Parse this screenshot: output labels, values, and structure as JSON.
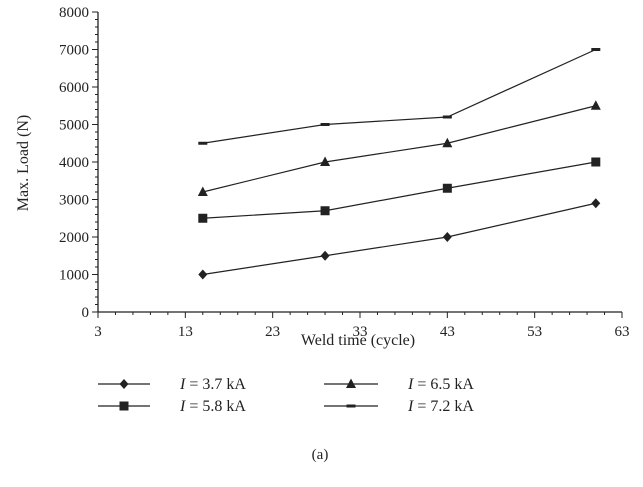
{
  "chart_data": {
    "type": "line",
    "xlabel": "Weld time (cycle)",
    "ylabel": "Max. Load (N)",
    "xlim": [
      3,
      63
    ],
    "ylim": [
      0,
      8000
    ],
    "xticks": [
      3,
      13,
      23,
      33,
      43,
      53,
      63
    ],
    "yticks": [
      0,
      1000,
      2000,
      3000,
      4000,
      5000,
      6000,
      7000,
      8000
    ],
    "series": [
      {
        "name_italic": "I",
        "name_rest": " = 3.7 kA",
        "marker": "diamond",
        "x": [
          15,
          29,
          43,
          60
        ],
        "y": [
          1000,
          1500,
          2000,
          2900
        ]
      },
      {
        "name_italic": "I",
        "name_rest": " = 5.8 kA",
        "marker": "square",
        "x": [
          15,
          29,
          43,
          60
        ],
        "y": [
          2500,
          2700,
          3300,
          4000
        ]
      },
      {
        "name_italic": "I",
        "name_rest": " = 6.5 kA",
        "marker": "triangle",
        "x": [
          15,
          29,
          43,
          60
        ],
        "y": [
          3200,
          4000,
          4500,
          5500
        ]
      },
      {
        "name_italic": "I",
        "name_rest": " = 7.2 kA",
        "marker": "dash",
        "x": [
          15,
          29,
          43,
          60
        ],
        "y": [
          4500,
          5000,
          5200,
          7000
        ]
      }
    ],
    "legend_position": "bottom",
    "grid": false,
    "line_color": "#222222"
  },
  "caption": "(a)"
}
